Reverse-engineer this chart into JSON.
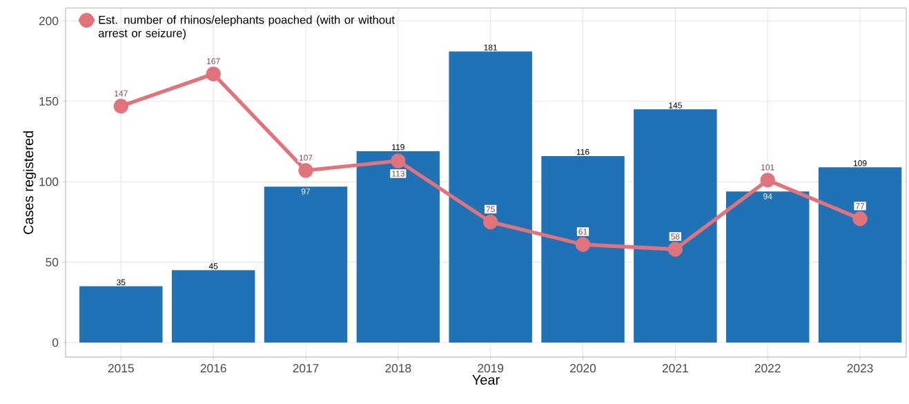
{
  "chart_data": {
    "type": "bar",
    "xlabel": "Year",
    "ylabel": "Cases registered",
    "categories": [
      "2015",
      "2016",
      "2017",
      "2018",
      "2019",
      "2020",
      "2021",
      "2022",
      "2023"
    ],
    "ylim": [
      -9,
      208
    ],
    "yticks": [
      0,
      50,
      100,
      150,
      200
    ],
    "grid": true,
    "legend": "top left",
    "data_labels": true,
    "series": [
      {
        "color": "#2171b5",
        "values": [
          35,
          45,
          97,
          119,
          181,
          116,
          145,
          94,
          109
        ]
      },
      {
        "type": "line",
        "name": "Est. number of rhinos/elephants poached (with or without arrest or seizure)",
        "color": "#e0737c",
        "marker": "circle",
        "values": [
          147,
          167,
          107,
          113,
          75,
          61,
          58,
          101,
          77
        ]
      }
    ]
  }
}
